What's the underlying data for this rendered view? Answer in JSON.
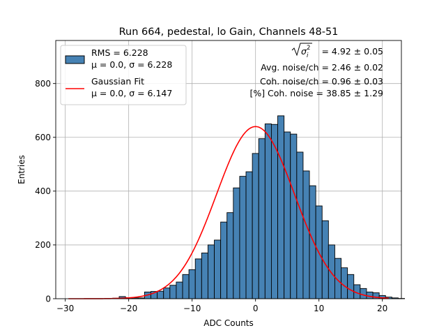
{
  "chart_data": {
    "type": "histogram",
    "title": "Run 664, pedestal, lo Gain, Channels 48-51",
    "xlabel": "ADC Counts",
    "ylabel": "Entries",
    "xlim": [
      -31.5,
      23
    ],
    "ylim": [
      0,
      960
    ],
    "grid": true,
    "x_ticks": [
      -30,
      -20,
      -10,
      0,
      10,
      20
    ],
    "x_tick_labels": [
      "−30",
      "−20",
      "−10",
      "0",
      "10",
      "20"
    ],
    "y_ticks": [
      0,
      200,
      400,
      600,
      800
    ],
    "y_tick_labels": [
      "0",
      "200",
      "400",
      "600",
      "800"
    ],
    "bins": {
      "start": -29.5,
      "width": 1,
      "counts": [
        0,
        0,
        0,
        0,
        0,
        0,
        0,
        2,
        8,
        4,
        3,
        3,
        25,
        27,
        28,
        40,
        50,
        62,
        90,
        108,
        148,
        170,
        200,
        218,
        285,
        320,
        412,
        455,
        472,
        540,
        595,
        650,
        648,
        680,
        620,
        612,
        545,
        475,
        420,
        345,
        290,
        200,
        150,
        115,
        90,
        52,
        38,
        25,
        22,
        12,
        6,
        3,
        1
      ]
    },
    "histogram_color": "#4682b4",
    "fit": {
      "type": "gaussian",
      "amplitude": 640,
      "mu": 0.0,
      "sigma": 6.147,
      "x_range": [
        -29.5,
        21
      ],
      "color": "#ff0000"
    },
    "legend": {
      "position": "upper-left",
      "entries": [
        {
          "marker": "patch",
          "line1": "RMS = 6.228",
          "line2": "μ = 0.0, σ = 6.228"
        },
        {
          "marker": "line",
          "line1": "Gaussian Fit",
          "line2": "μ = 0.0, σ = 6.147"
        }
      ]
    },
    "annotations": {
      "sqrt_sigma_value": "= 4.92 ± 0.05",
      "avg_noise": "Avg. noise/ch = 2.46 ± 0.02",
      "coh_noise": "Coh. noise/ch = 0.96 ± 0.03",
      "pct_coh_noise": "[%] Coh. noise = 38.85 ± 1.29"
    }
  }
}
